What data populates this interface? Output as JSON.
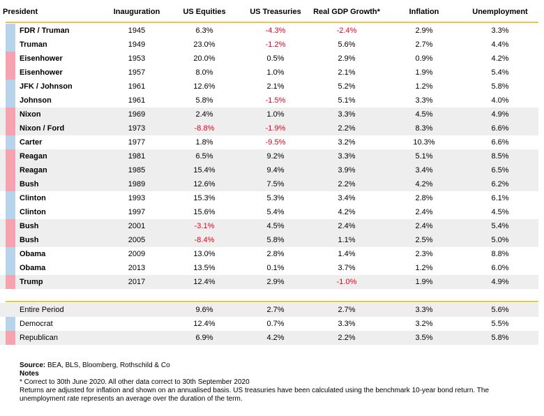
{
  "headers": {
    "president": "President",
    "inauguration": "Inauguration",
    "equities": "US Equities",
    "treasuries": "US Treasuries",
    "gdp": "Real GDP Growth*",
    "inflation": "Inflation",
    "unemployment": "Unemployment"
  },
  "colors": {
    "democrat": "#b7d4ea",
    "republican": "#f5a3ae",
    "accent_line": "#f0c24a",
    "negative": "#e8001c",
    "shade": "#eeeeee"
  },
  "rows": [
    {
      "president": "FDR / Truman",
      "party": "democrat",
      "inauguration": "1945",
      "equities": "6.3%",
      "treasuries": "-4.3%",
      "gdp": "-2.4%",
      "inflation": "2.9%",
      "unemployment": "3.3%"
    },
    {
      "president": "Truman",
      "party": "democrat",
      "inauguration": "1949",
      "equities": "23.0%",
      "treasuries": "-1.2%",
      "gdp": "5.6%",
      "inflation": "2.7%",
      "unemployment": "4.4%"
    },
    {
      "president": "Eisenhower",
      "party": "republican",
      "inauguration": "1953",
      "equities": "20.0%",
      "treasuries": "0.5%",
      "gdp": "2.9%",
      "inflation": "0.9%",
      "unemployment": "4.2%"
    },
    {
      "president": "Eisenhower",
      "party": "republican",
      "inauguration": "1957",
      "equities": "8.0%",
      "treasuries": "1.0%",
      "gdp": "2.1%",
      "inflation": "1.9%",
      "unemployment": "5.4%"
    },
    {
      "president": "JFK / Johnson",
      "party": "democrat",
      "inauguration": "1961",
      "equities": "12.6%",
      "treasuries": "2.1%",
      "gdp": "5.2%",
      "inflation": "1.2%",
      "unemployment": "5.8%"
    },
    {
      "president": "Johnson",
      "party": "democrat",
      "inauguration": "1961",
      "equities": "5.8%",
      "treasuries": "-1.5%",
      "gdp": "5.1%",
      "inflation": "3.3%",
      "unemployment": "4.0%"
    },
    {
      "president": "Nixon",
      "party": "republican",
      "inauguration": "1969",
      "equities": "2.4%",
      "treasuries": "1.0%",
      "gdp": "3.3%",
      "inflation": "4.5%",
      "unemployment": "4.9%"
    },
    {
      "president": "Nixon / Ford",
      "party": "republican",
      "inauguration": "1973",
      "equities": "-8.8%",
      "treasuries": "-1.9%",
      "gdp": "2.2%",
      "inflation": "8.3%",
      "unemployment": "6.6%"
    },
    {
      "president": "Carter",
      "party": "democrat",
      "inauguration": "1977",
      "equities": "1.8%",
      "treasuries": "-9.5%",
      "gdp": "3.2%",
      "inflation": "10.3%",
      "unemployment": "6.6%"
    },
    {
      "president": "Reagan",
      "party": "republican",
      "inauguration": "1981",
      "equities": "6.5%",
      "treasuries": "9.2%",
      "gdp": "3.3%",
      "inflation": "5.1%",
      "unemployment": "8.5%"
    },
    {
      "president": "Reagan",
      "party": "republican",
      "inauguration": "1985",
      "equities": "15.4%",
      "treasuries": "9.4%",
      "gdp": "3.9%",
      "inflation": "3.4%",
      "unemployment": "6.5%"
    },
    {
      "president": "Bush",
      "party": "republican",
      "inauguration": "1989",
      "equities": "12.6%",
      "treasuries": "7.5%",
      "gdp": "2.2%",
      "inflation": "4.2%",
      "unemployment": "6.2%"
    },
    {
      "president": "Clinton",
      "party": "democrat",
      "inauguration": "1993",
      "equities": "15.3%",
      "treasuries": "5.3%",
      "gdp": "3.4%",
      "inflation": "2.8%",
      "unemployment": "6.1%"
    },
    {
      "president": "Clinton",
      "party": "democrat",
      "inauguration": "1997",
      "equities": "15.6%",
      "treasuries": "5.4%",
      "gdp": "4.2%",
      "inflation": "2.4%",
      "unemployment": "4.5%"
    },
    {
      "president": "Bush",
      "party": "republican",
      "inauguration": "2001",
      "equities": "-3.1%",
      "treasuries": "4.5%",
      "gdp": "2.4%",
      "inflation": "2.4%",
      "unemployment": "5.4%"
    },
    {
      "president": "Bush",
      "party": "republican",
      "inauguration": "2005",
      "equities": "-8.4%",
      "treasuries": "5.8%",
      "gdp": "1.1%",
      "inflation": "2.5%",
      "unemployment": "5.0%"
    },
    {
      "president": "Obama",
      "party": "democrat",
      "inauguration": "2009",
      "equities": "13.0%",
      "treasuries": "2.8%",
      "gdp": "1.4%",
      "inflation": "2.3%",
      "unemployment": "8.8%"
    },
    {
      "president": "Obama",
      "party": "democrat",
      "inauguration": "2013",
      "equities": "13.5%",
      "treasuries": "0.1%",
      "gdp": "3.7%",
      "inflation": "1.2%",
      "unemployment": "6.0%"
    },
    {
      "president": "Trump",
      "party": "republican",
      "inauguration": "2017",
      "equities": "12.4%",
      "treasuries": "2.9%",
      "gdp": "-1.0%",
      "inflation": "1.9%",
      "unemployment": "4.9%"
    }
  ],
  "summary": [
    {
      "president": "Entire Period",
      "party": "none",
      "equities": "9.6%",
      "treasuries": "2.7%",
      "gdp": "2.7%",
      "inflation": "3.3%",
      "unemployment": "5.6%"
    },
    {
      "president": "Democrat",
      "party": "democrat",
      "equities": "12.4%",
      "treasuries": "0.7%",
      "gdp": "3.3%",
      "inflation": "3.2%",
      "unemployment": "5.5%"
    },
    {
      "president": "Republican",
      "party": "republican",
      "equities": "6.9%",
      "treasuries": "4.2%",
      "gdp": "2.2%",
      "inflation": "3.5%",
      "unemployment": "5.8%"
    }
  ],
  "notes": {
    "source_label": "Source:",
    "source_text": " BEA, BLS, Bloomberg, Rothschild & Co",
    "notes_label": "Notes",
    "lines": [
      "* Correct to 30th June 2020. All other data correct to 30th September 2020",
      "Returns are adjusted for inflation and shown on an annualised basis. US treasuries have been calculated using the benchmark 10-year bond return. The unemployment rate represents an average over the duration of the term."
    ]
  }
}
